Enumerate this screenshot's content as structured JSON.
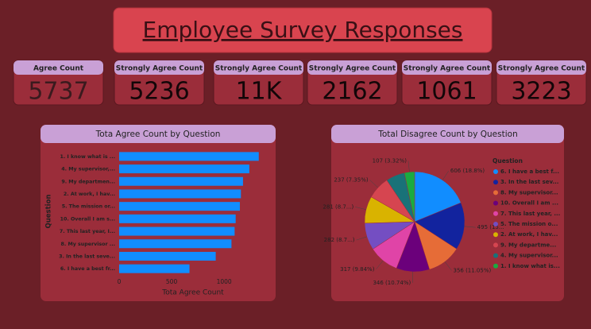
{
  "header": {
    "title": "Employee Survey Responses"
  },
  "cards": [
    {
      "label": "Agree Count",
      "value": "5737"
    },
    {
      "label": "Strongly Agree Count",
      "value": "5236"
    },
    {
      "label": "Strongly Agree Count",
      "value": "11K"
    },
    {
      "label": "Strongly Agree Count",
      "value": "2162"
    },
    {
      "label": "Strongly Agree Count",
      "value": "1061"
    },
    {
      "label": "Strongly Agree Count",
      "value": "3223"
    }
  ],
  "chart_data": [
    {
      "type": "hbar",
      "title": "Tota Agree Count by Question",
      "x_label": "Tota Agree Count",
      "y_label": "Question",
      "categories": [
        "1. I know what is ...",
        "4. My supervisor,...",
        "9. My departmen...",
        "2. At work, I hav...",
        "5. The mission or...",
        "10. Overall I am s...",
        "7. This last year, I...",
        "8. My supervisor ...",
        "3. In the last seve...",
        "6. I have a best fr..."
      ],
      "values": [
        1330,
        1240,
        1180,
        1160,
        1150,
        1110,
        1100,
        1070,
        920,
        670
      ],
      "color": "#118dff",
      "xlim": [
        0,
        1400
      ],
      "xticks": [
        0,
        500,
        1000
      ]
    },
    {
      "type": "pie",
      "title": "Total Disagree Count by Question",
      "legend_title": "Question",
      "categories": [
        "6. I have a best f...",
        "3. In the last sev...",
        "8. My supervisor...",
        "10. Overall I am ...",
        "7. This last year, ...",
        "5. The mission o...",
        "2. At work, I hav...",
        "9. My departme...",
        "4. My supervisor...",
        "1. I know what is..."
      ],
      "values": [
        606,
        495,
        356,
        346,
        317,
        282,
        281,
        237,
        196,
        107
      ],
      "value_labels": [
        "606 (18.8%)",
        "495 (15...",
        "356 (11.05%)",
        "346 (10.74%)",
        "317 (9.84%)",
        "282 (8.7...)",
        "281 (8.7...)",
        "237 (7.35%)",
        null,
        "107 (3.32%)"
      ],
      "colors": [
        "#118dff",
        "#12239e",
        "#e66c37",
        "#6b007b",
        "#e044a7",
        "#744ec2",
        "#d9b300",
        "#d64550",
        "#197278",
        "#1aab40"
      ]
    }
  ]
}
